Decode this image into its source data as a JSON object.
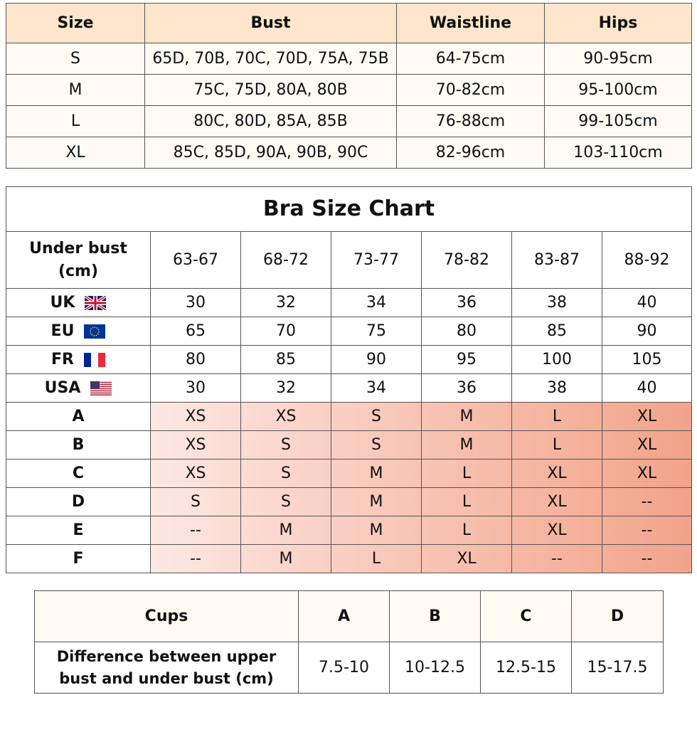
{
  "size_table": {
    "headers": [
      "Size",
      "Bust",
      "Waistline",
      "Hips"
    ],
    "rows": [
      [
        "S",
        "65D, 70B, 70C, 70D, 75A, 75B",
        "64-75cm",
        "90-95cm"
      ],
      [
        "M",
        "75C, 75D, 80A, 80B",
        "70-82cm",
        "95-100cm"
      ],
      [
        "L",
        "80C, 80D, 85A, 85B",
        "76-88cm",
        "99-105cm"
      ],
      [
        "XL",
        "85C, 85D, 90A, 90B, 90C",
        "82-96cm",
        "103-110cm"
      ]
    ]
  },
  "bra_chart": {
    "title": "Bra Size Chart",
    "header": [
      "Under bust (cm)",
      "63-67",
      "68-72",
      "73-77",
      "78-82",
      "83-87",
      "88-92"
    ],
    "rows": [
      [
        "UK",
        "30",
        "32",
        "34",
        "36",
        "38",
        "40"
      ],
      [
        "EU",
        "65",
        "70",
        "75",
        "80",
        "85",
        "90"
      ],
      [
        "FR",
        "80",
        "85",
        "90",
        "95",
        "100",
        "105"
      ],
      [
        "USA",
        "30",
        "32",
        "34",
        "36",
        "38",
        "40"
      ],
      [
        "A",
        "XS",
        "XS",
        "S",
        "M",
        "L",
        "XL"
      ],
      [
        "B",
        "XS",
        "S",
        "S",
        "M",
        "L",
        "XL"
      ],
      [
        "C",
        "XS",
        "S",
        "M",
        "L",
        "XL",
        "XL"
      ],
      [
        "D",
        "S",
        "S",
        "M",
        "L",
        "XL",
        "--"
      ],
      [
        "E",
        "--",
        "M",
        "M",
        "L",
        "XL",
        "--"
      ],
      [
        "F",
        "--",
        "M",
        "L",
        "XL",
        "--",
        "--"
      ]
    ]
  },
  "cups_table": {
    "headers": [
      "Cups",
      "A",
      "B",
      "C",
      "D"
    ],
    "rows": [
      [
        "Difference between upper bust and under bust (cm)",
        "7.5-10",
        "10-12.5",
        "12.5-15",
        "15-17.5"
      ]
    ]
  }
}
